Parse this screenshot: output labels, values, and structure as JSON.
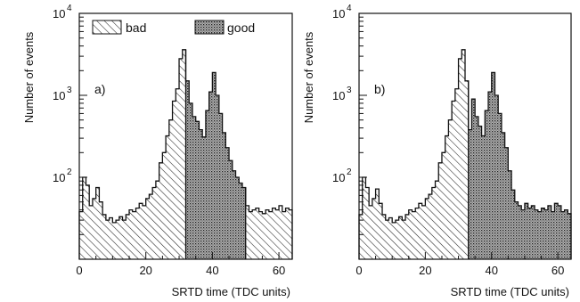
{
  "chart_data": [
    {
      "type": "bar",
      "panel_label": "a)",
      "xlabel": "SRTD time (TDC units)",
      "ylabel": "Number of events",
      "xlim": [
        0,
        64
      ],
      "ylim": [
        10,
        10000
      ],
      "log_y": true,
      "x_ticks": [
        0,
        20,
        40,
        60
      ],
      "y_ticks": [
        {
          "value": 100,
          "base": "10",
          "exp": "2"
        },
        {
          "value": 1000,
          "base": "10",
          "exp": "3"
        },
        {
          "value": 10000,
          "base": "10",
          "exp": "4"
        }
      ],
      "legend": [
        {
          "label": "bad",
          "style": "hatched"
        },
        {
          "label": "good",
          "style": "dotted"
        }
      ],
      "bin_width": 1,
      "x": [
        0,
        1,
        2,
        3,
        4,
        5,
        6,
        7,
        8,
        9,
        10,
        11,
        12,
        13,
        14,
        15,
        16,
        17,
        18,
        19,
        20,
        21,
        22,
        23,
        24,
        25,
        26,
        27,
        28,
        29,
        30,
        31,
        32,
        33,
        34,
        35,
        36,
        37,
        38,
        39,
        40,
        41,
        42,
        43,
        44,
        45,
        46,
        47,
        48,
        49,
        50,
        51,
        52,
        53,
        54,
        55,
        56,
        57,
        58,
        59,
        60,
        61,
        62,
        63
      ],
      "values": [
        38,
        100,
        80,
        45,
        55,
        75,
        50,
        35,
        30,
        32,
        28,
        30,
        33,
        30,
        35,
        40,
        38,
        42,
        48,
        45,
        55,
        62,
        75,
        90,
        150,
        200,
        320,
        500,
        850,
        1200,
        2800,
        3600,
        1500,
        800,
        550,
        480,
        380,
        310,
        650,
        1100,
        1900,
        1000,
        600,
        350,
        230,
        160,
        120,
        100,
        85,
        75,
        45,
        38,
        40,
        42,
        38,
        36,
        40,
        38,
        42,
        40,
        45,
        38,
        42,
        40
      ],
      "good_range": [
        32,
        50
      ]
    },
    {
      "type": "bar",
      "panel_label": "b)",
      "xlabel": "SRTD time (TDC units)",
      "ylabel": "Number of events",
      "xlim": [
        0,
        64
      ],
      "ylim": [
        10,
        10000
      ],
      "log_y": true,
      "x_ticks": [
        0,
        20,
        40,
        60
      ],
      "y_ticks": [
        {
          "value": 100,
          "base": "10",
          "exp": "2"
        },
        {
          "value": 1000,
          "base": "10",
          "exp": "3"
        },
        {
          "value": 10000,
          "base": "10",
          "exp": "4"
        }
      ],
      "bin_width": 1,
      "x": [
        0,
        1,
        2,
        3,
        4,
        5,
        6,
        7,
        8,
        9,
        10,
        11,
        12,
        13,
        14,
        15,
        16,
        17,
        18,
        19,
        20,
        21,
        22,
        23,
        24,
        25,
        26,
        27,
        28,
        29,
        30,
        31,
        32,
        33,
        34,
        35,
        36,
        37,
        38,
        39,
        40,
        41,
        42,
        43,
        44,
        45,
        46,
        47,
        48,
        49,
        50,
        51,
        52,
        53,
        54,
        55,
        56,
        57,
        58,
        59,
        60,
        61,
        62,
        63
      ],
      "values": [
        35,
        100,
        75,
        45,
        55,
        72,
        48,
        35,
        30,
        32,
        28,
        30,
        33,
        30,
        35,
        40,
        38,
        42,
        48,
        45,
        55,
        62,
        75,
        90,
        150,
        200,
        320,
        500,
        850,
        1200,
        2800,
        3600,
        1500,
        380,
        900,
        550,
        420,
        320,
        650,
        1100,
        1900,
        1000,
        600,
        350,
        230,
        120,
        70,
        50,
        45,
        40,
        48,
        42,
        45,
        40,
        38,
        42,
        40,
        45,
        38,
        48,
        45,
        38,
        40,
        36
      ],
      "good_range": [
        33,
        64
      ]
    }
  ]
}
